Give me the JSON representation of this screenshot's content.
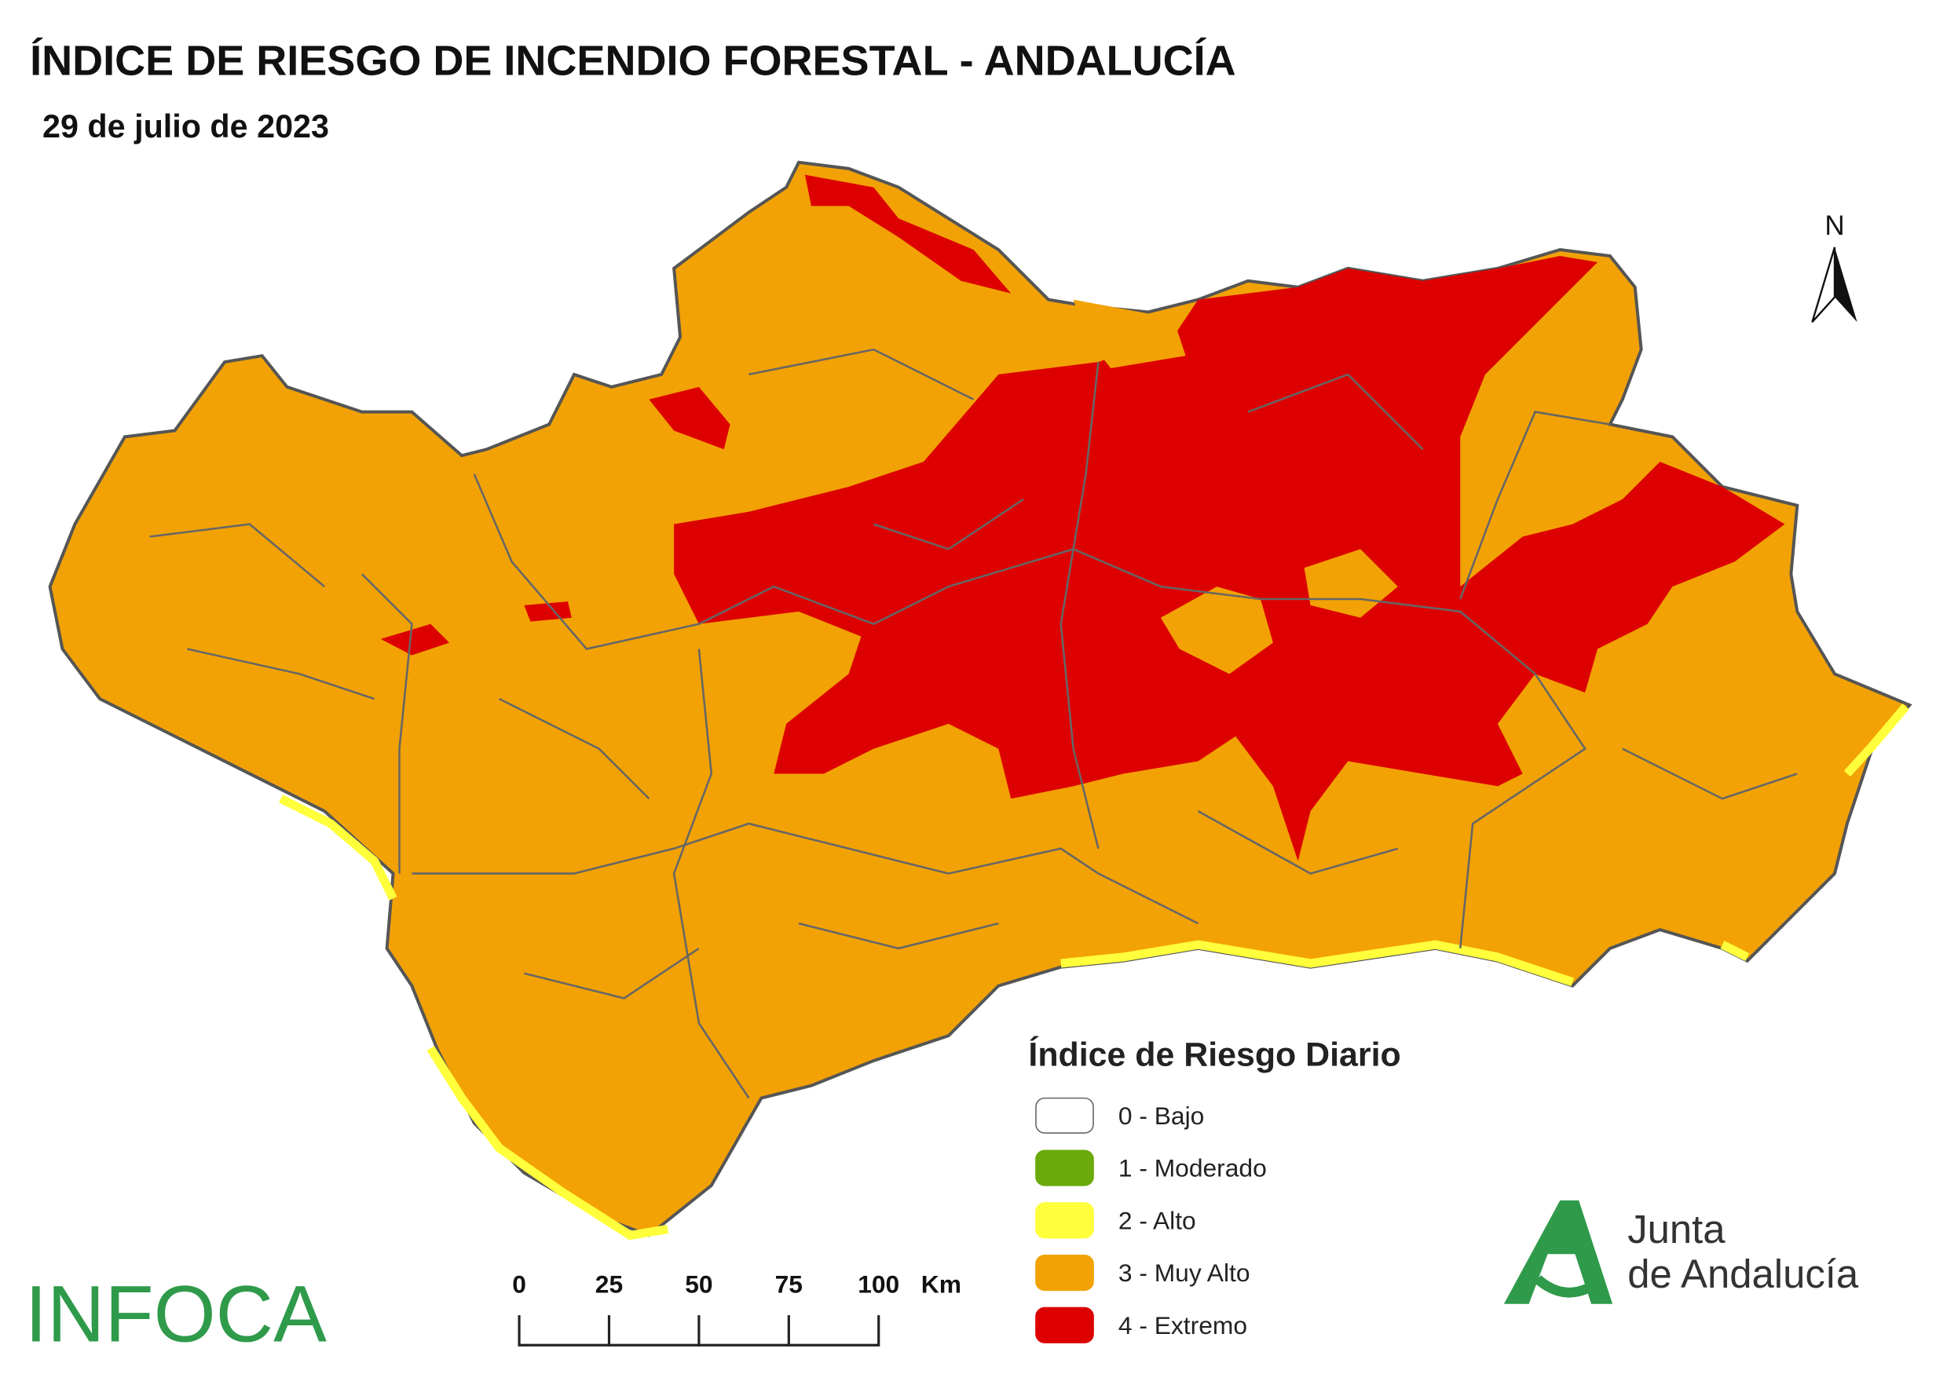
{
  "title": "ÍNDICE DE RIESGO DE INCENDIO FORESTAL - ANDALUCÍA",
  "date": "29 de julio de 2023",
  "north": "N",
  "legend": {
    "title": "Índice de Riesgo Diario",
    "items": [
      {
        "label": "0 - Bajo",
        "color": "#ffffff"
      },
      {
        "label": "1 - Moderado",
        "color": "#6aaa0a"
      },
      {
        "label": "2 - Alto",
        "color": "#ffff3c"
      },
      {
        "label": "3 - Muy Alto",
        "color": "#f2a205"
      },
      {
        "label": "4 - Extremo",
        "color": "#dd0000"
      }
    ]
  },
  "scale_bar": {
    "ticks": [
      0,
      25,
      50,
      75,
      100
    ],
    "unit": "Km"
  },
  "logos": {
    "infoca": "INFOCA",
    "junta": [
      "Junta",
      "de Andalucía"
    ]
  }
}
